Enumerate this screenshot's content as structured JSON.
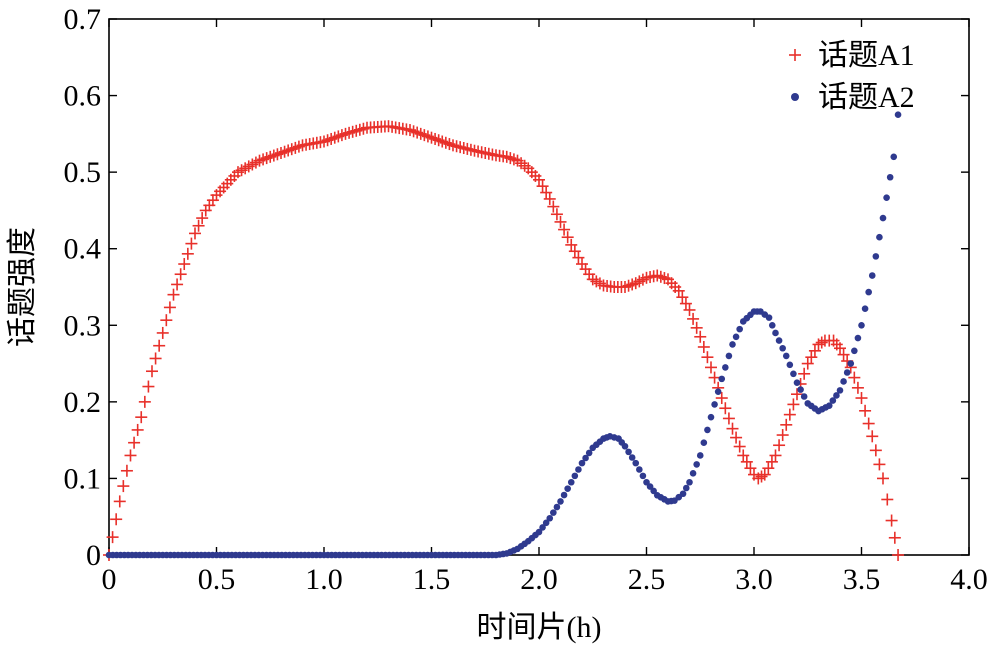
{
  "chart_data": {
    "type": "scatter",
    "title": "",
    "xlabel": "时间片(h)",
    "ylabel": "话题强度",
    "xlim": [
      0,
      4.0
    ],
    "ylim": [
      0,
      0.7
    ],
    "x_ticks": [
      "0",
      "0.5",
      "1.0",
      "1.5",
      "2.0",
      "2.5",
      "3.0",
      "3.5",
      "4.0"
    ],
    "y_ticks": [
      "0",
      "0.1",
      "0.2",
      "0.3",
      "0.4",
      "0.5",
      "0.6",
      "0.7"
    ],
    "grid": false,
    "legend_position": "top-right",
    "series": [
      {
        "name": "话题A1",
        "marker": "plus",
        "color": "#e8302a",
        "points": [
          [
            0.0,
            0.0
          ],
          [
            0.05,
            0.07
          ],
          [
            0.1,
            0.13
          ],
          [
            0.15,
            0.18
          ],
          [
            0.2,
            0.24
          ],
          [
            0.25,
            0.29
          ],
          [
            0.3,
            0.34
          ],
          [
            0.35,
            0.38
          ],
          [
            0.4,
            0.42
          ],
          [
            0.45,
            0.45
          ],
          [
            0.5,
            0.47
          ],
          [
            0.55,
            0.485
          ],
          [
            0.6,
            0.5
          ],
          [
            0.7,
            0.515
          ],
          [
            0.8,
            0.525
          ],
          [
            0.9,
            0.535
          ],
          [
            1.0,
            0.54
          ],
          [
            1.1,
            0.55
          ],
          [
            1.2,
            0.558
          ],
          [
            1.3,
            0.56
          ],
          [
            1.4,
            0.555
          ],
          [
            1.5,
            0.545
          ],
          [
            1.6,
            0.535
          ],
          [
            1.7,
            0.528
          ],
          [
            1.8,
            0.522
          ],
          [
            1.85,
            0.52
          ],
          [
            1.9,
            0.515
          ],
          [
            1.95,
            0.505
          ],
          [
            2.0,
            0.49
          ],
          [
            2.05,
            0.465
          ],
          [
            2.1,
            0.435
          ],
          [
            2.15,
            0.405
          ],
          [
            2.2,
            0.38
          ],
          [
            2.25,
            0.36
          ],
          [
            2.3,
            0.352
          ],
          [
            2.35,
            0.35
          ],
          [
            2.4,
            0.35
          ],
          [
            2.45,
            0.355
          ],
          [
            2.5,
            0.362
          ],
          [
            2.55,
            0.365
          ],
          [
            2.6,
            0.36
          ],
          [
            2.65,
            0.345
          ],
          [
            2.7,
            0.32
          ],
          [
            2.75,
            0.285
          ],
          [
            2.8,
            0.245
          ],
          [
            2.85,
            0.205
          ],
          [
            2.9,
            0.165
          ],
          [
            2.95,
            0.13
          ],
          [
            3.0,
            0.105
          ],
          [
            3.02,
            0.1
          ],
          [
            3.05,
            0.105
          ],
          [
            3.1,
            0.13
          ],
          [
            3.15,
            0.17
          ],
          [
            3.2,
            0.21
          ],
          [
            3.25,
            0.25
          ],
          [
            3.3,
            0.275
          ],
          [
            3.33,
            0.28
          ],
          [
            3.37,
            0.28
          ],
          [
            3.4,
            0.27
          ],
          [
            3.45,
            0.245
          ],
          [
            3.5,
            0.205
          ],
          [
            3.55,
            0.155
          ],
          [
            3.6,
            0.1
          ],
          [
            3.64,
            0.045
          ],
          [
            3.67,
            0.0
          ]
        ]
      },
      {
        "name": "话题A2",
        "marker": "dot",
        "color": "#2f3a8f",
        "points": [
          [
            0.0,
            0.0
          ],
          [
            0.5,
            0.0
          ],
          [
            1.0,
            0.0
          ],
          [
            1.5,
            0.0
          ],
          [
            1.8,
            0.0
          ],
          [
            1.85,
            0.002
          ],
          [
            1.9,
            0.008
          ],
          [
            1.95,
            0.018
          ],
          [
            2.0,
            0.03
          ],
          [
            2.05,
            0.048
          ],
          [
            2.1,
            0.07
          ],
          [
            2.15,
            0.095
          ],
          [
            2.2,
            0.12
          ],
          [
            2.25,
            0.14
          ],
          [
            2.3,
            0.152
          ],
          [
            2.33,
            0.155
          ],
          [
            2.37,
            0.152
          ],
          [
            2.4,
            0.142
          ],
          [
            2.45,
            0.12
          ],
          [
            2.5,
            0.095
          ],
          [
            2.55,
            0.078
          ],
          [
            2.6,
            0.07
          ],
          [
            2.63,
            0.071
          ],
          [
            2.67,
            0.08
          ],
          [
            2.7,
            0.095
          ],
          [
            2.75,
            0.13
          ],
          [
            2.8,
            0.18
          ],
          [
            2.85,
            0.23
          ],
          [
            2.9,
            0.275
          ],
          [
            2.95,
            0.305
          ],
          [
            3.0,
            0.318
          ],
          [
            3.03,
            0.318
          ],
          [
            3.07,
            0.31
          ],
          [
            3.1,
            0.29
          ],
          [
            3.15,
            0.26
          ],
          [
            3.2,
            0.225
          ],
          [
            3.25,
            0.198
          ],
          [
            3.3,
            0.188
          ],
          [
            3.35,
            0.195
          ],
          [
            3.4,
            0.215
          ],
          [
            3.45,
            0.25
          ],
          [
            3.5,
            0.3
          ],
          [
            3.55,
            0.365
          ],
          [
            3.6,
            0.44
          ],
          [
            3.65,
            0.52
          ],
          [
            3.67,
            0.575
          ]
        ]
      }
    ]
  }
}
